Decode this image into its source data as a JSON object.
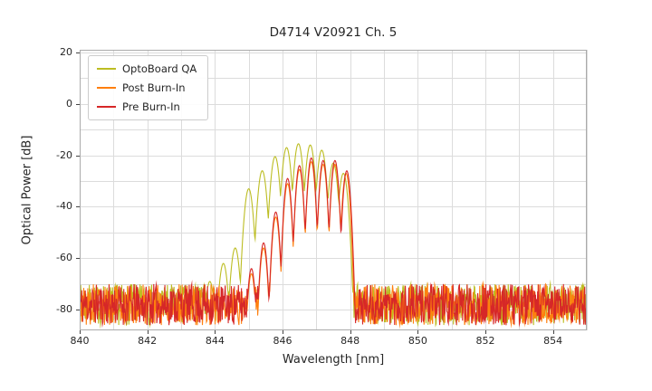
{
  "chart_data": {
    "type": "line",
    "title": "D4714 V20921 Ch. 5",
    "xlabel": "Wavelength [nm]",
    "ylabel": "Optical Power [dB]",
    "xlim": [
      840,
      855
    ],
    "ylim": [
      -88,
      21
    ],
    "x_ticks": [
      840,
      842,
      844,
      846,
      848,
      850,
      852,
      854
    ],
    "y_ticks": [
      20,
      0,
      -20,
      -40,
      -60,
      -80
    ],
    "x_grid_step": 1,
    "y_grid_step": 10,
    "grid": true,
    "legend_position": "upper left",
    "sample_step_nm": 0.015,
    "series": [
      {
        "name": "OptoBoard QA",
        "color": "#bcbd22",
        "noise_floor": -78,
        "noise_amp": 8,
        "valley_sharpness": 600,
        "seed": 7,
        "peaks": [
          [
            843.85,
            -69
          ],
          [
            844.25,
            -62
          ],
          [
            844.6,
            -56
          ],
          [
            845.0,
            -33
          ],
          [
            845.4,
            -26
          ],
          [
            845.78,
            -20.5
          ],
          [
            846.12,
            -17
          ],
          [
            846.47,
            -15.5
          ],
          [
            846.82,
            -16
          ],
          [
            847.16,
            -18
          ],
          [
            847.5,
            -23
          ],
          [
            847.8,
            -27
          ]
        ]
      },
      {
        "name": "Post Burn-In",
        "color": "#ff7f0e",
        "noise_floor": -78,
        "noise_amp": 8,
        "valley_sharpness": 900,
        "seed": 5,
        "peaks": [
          [
            845.08,
            -66
          ],
          [
            845.44,
            -56
          ],
          [
            845.8,
            -44
          ],
          [
            846.15,
            -31
          ],
          [
            846.5,
            -25.5
          ],
          [
            846.85,
            -22.5
          ],
          [
            847.2,
            -23.5
          ],
          [
            847.55,
            -23.5
          ],
          [
            847.88,
            -27
          ]
        ]
      },
      {
        "name": "Pre Burn-In",
        "color": "#d62728",
        "noise_floor": -78,
        "noise_amp": 8,
        "valley_sharpness": 900,
        "seed": 11,
        "peaks": [
          [
            845.08,
            -64
          ],
          [
            845.44,
            -54
          ],
          [
            845.8,
            -42
          ],
          [
            846.15,
            -29
          ],
          [
            846.5,
            -24
          ],
          [
            846.85,
            -21
          ],
          [
            847.2,
            -22
          ],
          [
            847.55,
            -22
          ],
          [
            847.9,
            -26
          ]
        ]
      }
    ]
  }
}
